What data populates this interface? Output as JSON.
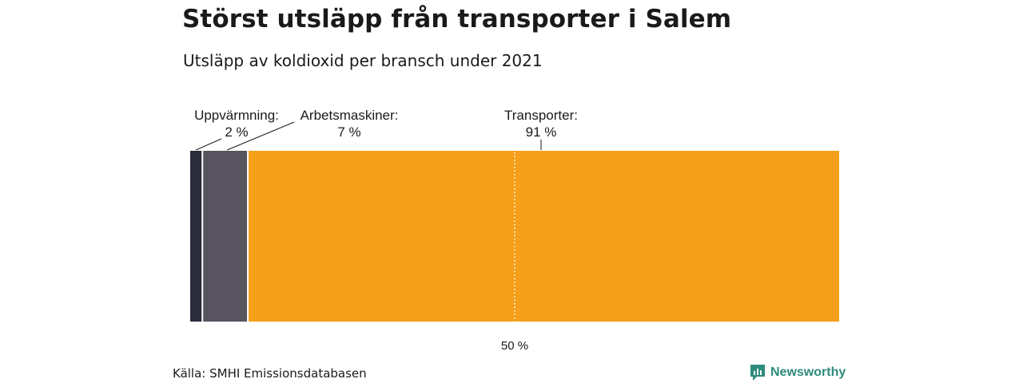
{
  "header": {
    "title": "Störst utsläpp från transporter i Salem",
    "subtitle": "Utsläpp av koldioxid per bransch under 2021"
  },
  "footer": {
    "source": "Källa: SMHI Emissionsdatabasen",
    "brand": "Newsworthy",
    "brand_color": "#2e8b7c"
  },
  "chart_data": {
    "type": "bar",
    "orientation": "horizontal-stacked-100",
    "unit": "%",
    "series": [
      {
        "name": "Uppvärmning",
        "value": 2,
        "value_label": "2 %",
        "color": "#2b2b3a"
      },
      {
        "name": "Arbetsmaskiner",
        "value": 7,
        "value_label": "7 %",
        "color": "#57545f"
      },
      {
        "name": "Transporter",
        "value": 91,
        "value_label": "91 %",
        "color": "#f59f1a"
      }
    ],
    "reference_line": {
      "value": 50,
      "label": "50 %",
      "style": "dotted",
      "color": "#ffffff"
    },
    "xlim": [
      0,
      100
    ]
  }
}
